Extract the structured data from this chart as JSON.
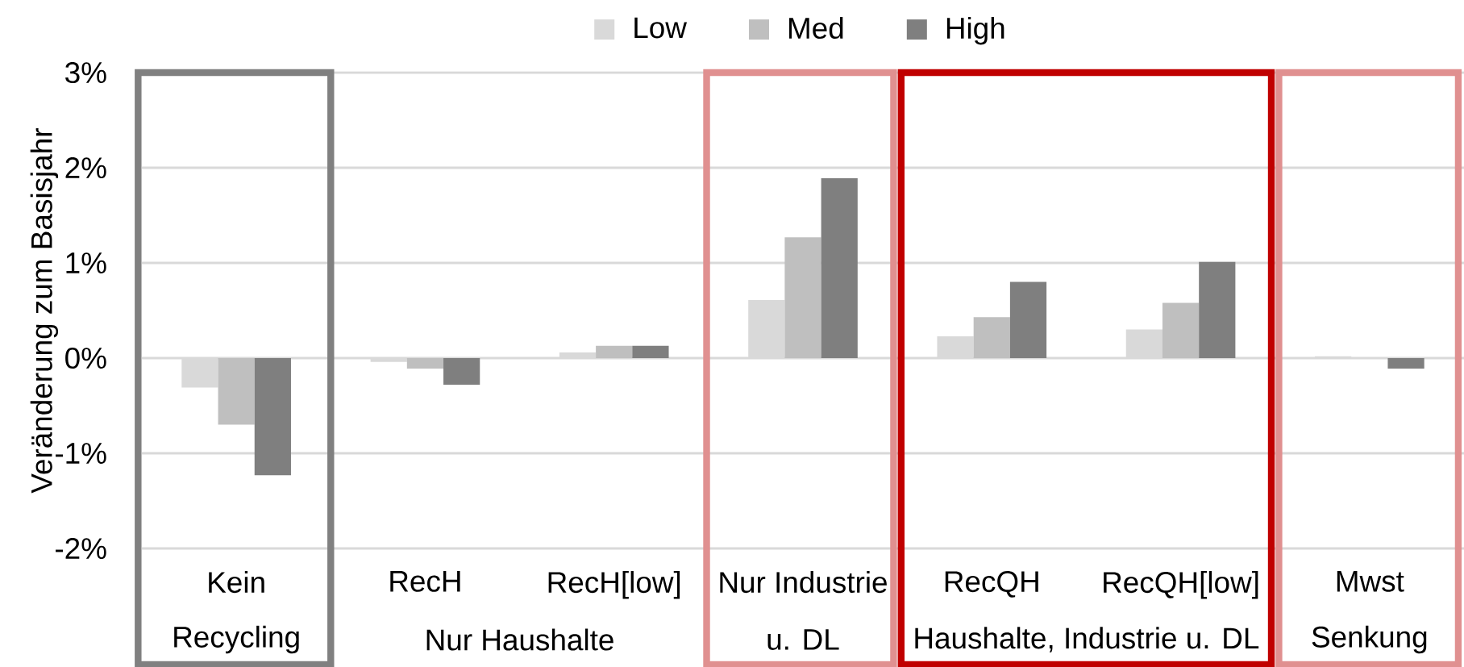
{
  "chart_data": {
    "type": "bar",
    "ylabel": "Veränderung zum Basisjahr",
    "categories": [
      "Kein",
      "RecH",
      "RecH[low]",
      "Nur Industrie",
      "RecQH",
      "RecQH[low]",
      "Mwst"
    ],
    "series": [
      {
        "name": "Low",
        "color": "#d9d9d9",
        "values": [
          -0.31,
          -0.04,
          0.06,
          0.61,
          0.23,
          0.3,
          0.02
        ]
      },
      {
        "name": "Med",
        "color": "#bfbfbf",
        "values": [
          -0.7,
          -0.11,
          0.13,
          1.27,
          0.43,
          0.58,
          null
        ]
      },
      {
        "name": "High",
        "color": "#7f7f7f",
        "values": [
          -1.23,
          -0.28,
          0.13,
          1.89,
          0.8,
          1.01,
          -0.11
        ]
      }
    ],
    "ylim": [
      -2,
      3
    ],
    "yticks": [
      {
        "value": -2,
        "label": "-2%"
      },
      {
        "value": -1,
        "label": "-1%"
      },
      {
        "value": 0,
        "label": "0%"
      },
      {
        "value": 1,
        "label": "1%"
      },
      {
        "value": 2,
        "label": "2%"
      },
      {
        "value": 3,
        "label": "3%"
      }
    ],
    "grid": "y",
    "legend": "top",
    "annotations": [
      "Recycling",
      "Nur Haushalte",
      "u. DL",
      "Haushalte, Industrie u. DL",
      "Senkung"
    ]
  }
}
